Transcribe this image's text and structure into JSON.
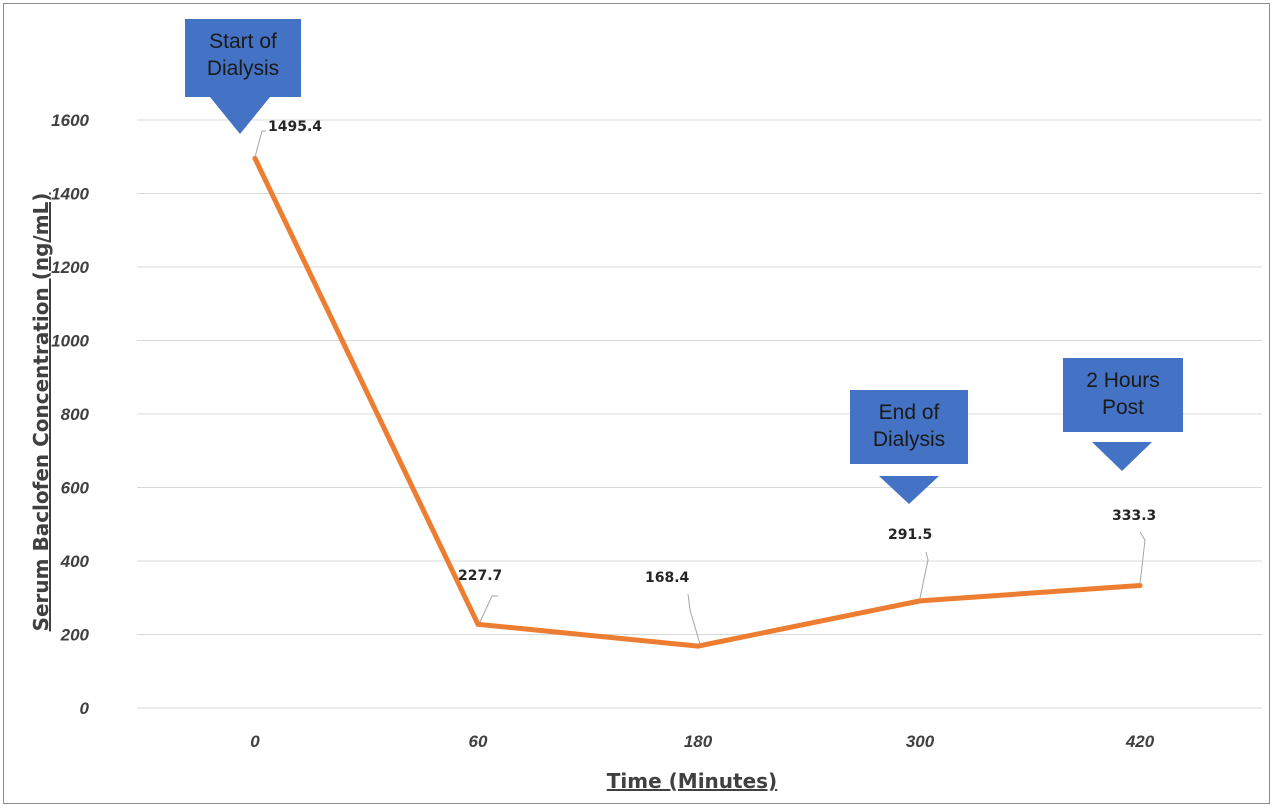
{
  "chart_data": {
    "type": "line",
    "title": "",
    "xlabel": "Time (Minutes)",
    "ylabel": "Serum Baclofen Concentration (ng/mL)",
    "categories": [
      "0",
      "60",
      "180",
      "300",
      "420"
    ],
    "series": [
      {
        "values": [
          1495.4,
          227.7,
          168.4,
          291.5,
          333.3
        ]
      }
    ],
    "data_labels": [
      "1495.4",
      "227.7",
      "168.4",
      "291.5",
      "333.3"
    ],
    "y_ticks": [
      "0",
      "200",
      "400",
      "600",
      "800",
      "1000",
      "1200",
      "1400",
      "1600"
    ],
    "ylim": [
      0,
      1600
    ],
    "grid": "horizontal",
    "legend": "none",
    "annotations": [
      {
        "lines": [
          "Start of",
          "Dialysis"
        ],
        "category": "0"
      },
      {
        "lines": [
          "End of",
          "Dialysis"
        ],
        "category": "300"
      },
      {
        "lines": [
          "2 Hours",
          "Post"
        ],
        "category": "420"
      }
    ],
    "colors": {
      "line": "#ed7d31",
      "annotation": "#4472c4",
      "grid": "#d9d9d9"
    }
  }
}
